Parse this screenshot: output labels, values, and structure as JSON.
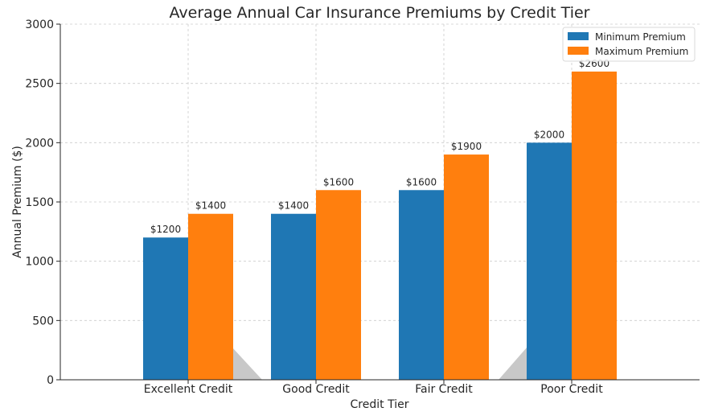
{
  "chart_data": {
    "type": "bar",
    "title": "Average Annual Car Insurance Premiums by Credit Tier",
    "xlabel": "Credit Tier",
    "ylabel": "Annual Premium ($)",
    "categories": [
      "Excellent Credit",
      "Good Credit",
      "Fair Credit",
      "Poor Credit"
    ],
    "series": [
      {
        "name": "Minimum Premium",
        "color": "#1f77b4",
        "values": [
          1200,
          1400,
          1600,
          2000
        ]
      },
      {
        "name": "Maximum Premium",
        "color": "#ff7f0e",
        "values": [
          1400,
          1600,
          1900,
          2600
        ]
      }
    ],
    "data_labels": [
      [
        "$1200",
        "$1400",
        "$1600",
        "$2000"
      ],
      [
        "$1400",
        "$1600",
        "$1900",
        "$2600"
      ]
    ],
    "ylim": [
      0,
      3000
    ],
    "yticks": [
      "0",
      "500",
      "1000",
      "1500",
      "2000",
      "2500",
      "3000"
    ],
    "grid": true,
    "legend": "top-right"
  }
}
